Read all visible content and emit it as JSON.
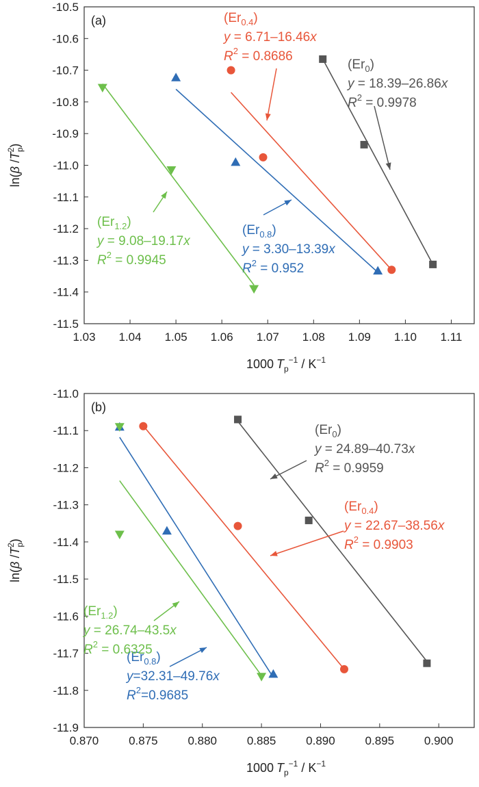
{
  "chart_data": [
    {
      "type": "scatter",
      "panel_label": "(a)",
      "xlabel": "1000T_p^-1 / K^-1",
      "ylabel": "ln(β/T_p^2)",
      "xlim": [
        1.03,
        1.115
      ],
      "ylim": [
        -11.5,
        -10.5
      ],
      "xticks": [
        "1.03",
        "1.04",
        "1.05",
        "1.06",
        "1.07",
        "1.08",
        "1.09",
        "1.10",
        "1.11"
      ],
      "yticks": [
        "-10.5",
        "-10.6",
        "-10.7",
        "-10.8",
        "-10.9",
        "-11.0",
        "-11.1",
        "-11.2",
        "-11.3",
        "-11.4",
        "-11.5"
      ],
      "series": [
        {
          "name": "Er0",
          "label_base": "(Er",
          "label_sub": "0",
          "color": "#555555",
          "marker": "square",
          "points": [
            [
              1.082,
              -10.665
            ],
            [
              1.091,
              -10.935
            ],
            [
              1.106,
              -11.313
            ]
          ],
          "fit": [
            [
              1.082,
              -10.665
            ],
            [
              1.106,
              -11.313
            ]
          ],
          "equation": "y = 18.39–26.86x",
          "r2": "R² = 0.9978"
        },
        {
          "name": "Er0.4",
          "label_base": "(Er",
          "label_sub": "0.4",
          "color": "#e8563a",
          "marker": "circle",
          "points": [
            [
              1.062,
              -10.7
            ],
            [
              1.069,
              -10.975
            ],
            [
              1.097,
              -11.33
            ]
          ],
          "fit": [
            [
              1.062,
              -10.77
            ],
            [
              1.097,
              -11.33
            ]
          ],
          "equation": "y = 6.71–16.46x",
          "r2": "R² = 0.8686"
        },
        {
          "name": "Er0.8",
          "label_base": "(Er",
          "label_sub": "0.8",
          "color": "#2f6db5",
          "marker": "triangle-up",
          "points": [
            [
              1.05,
              -10.723
            ],
            [
              1.063,
              -10.99
            ],
            [
              1.094,
              -11.333
            ]
          ],
          "fit": [
            [
              1.05,
              -10.76
            ],
            [
              1.094,
              -11.338
            ]
          ],
          "equation": "y = 3.30–13.39x",
          "r2": "R² = 0.952"
        },
        {
          "name": "Er1.2",
          "label_base": "(Er",
          "label_sub": "1.2",
          "color": "#6dbf4b",
          "marker": "triangle-down",
          "points": [
            [
              1.034,
              -10.755
            ],
            [
              1.049,
              -11.015
            ],
            [
              1.067,
              -11.39
            ]
          ],
          "fit": [
            [
              1.034,
              -10.743
            ],
            [
              1.067,
              -11.378
            ]
          ],
          "equation": "y = 9.08–19.17x",
          "r2": "R² = 0.9945"
        }
      ]
    },
    {
      "type": "scatter",
      "panel_label": "(b)",
      "xlabel": "1000T_p^-1 / K^-1",
      "ylabel": "ln(β/T_p^2)",
      "xlim": [
        0.87,
        0.903
      ],
      "ylim": [
        -11.9,
        -11.0
      ],
      "xticks": [
        "0.870",
        "0.875",
        "0.880",
        "0.885",
        "0.890",
        "0.895",
        "0.900"
      ],
      "yticks": [
        "-11.0",
        "-11.1",
        "-11.2",
        "-11.3",
        "-11.4",
        "-11.5",
        "-11.6",
        "-11.7",
        "-11.8",
        "-11.9"
      ],
      "series": [
        {
          "name": "Er0",
          "label_base": "(Er",
          "label_sub": "0",
          "color": "#555555",
          "marker": "square",
          "points": [
            [
              0.883,
              -11.07
            ],
            [
              0.889,
              -11.342
            ],
            [
              0.899,
              -11.727
            ]
          ],
          "fit": [
            [
              0.883,
              -11.075
            ],
            [
              0.899,
              -11.722
            ]
          ],
          "equation": "y = 24.89–40.73x",
          "r2": "R² = 0.9959"
        },
        {
          "name": "Er0.4",
          "label_base": "(Er",
          "label_sub": "0.4",
          "color": "#e8563a",
          "marker": "circle",
          "points": [
            [
              0.875,
              -11.088
            ],
            [
              0.883,
              -11.357
            ],
            [
              0.892,
              -11.743
            ]
          ],
          "fit": [
            [
              0.875,
              -11.087
            ],
            [
              0.892,
              -11.743
            ]
          ],
          "equation": "y = 22.67–38.56x",
          "r2": "R² = 0.9903"
        },
        {
          "name": "Er0.8",
          "label_base": "(Er",
          "label_sub": "0.8",
          "color": "#2f6db5",
          "marker": "triangle-up",
          "points": [
            [
              0.873,
              -11.09
            ],
            [
              0.877,
              -11.37
            ],
            [
              0.886,
              -11.756
            ]
          ],
          "fit": [
            [
              0.873,
              -11.118
            ],
            [
              0.886,
              -11.765
            ]
          ],
          "equation": "y=32.31–49.76x",
          "r2": "R²=0.9685"
        },
        {
          "name": "Er1.2",
          "label_base": "(Er",
          "label_sub": "1.2",
          "color": "#6dbf4b",
          "marker": "triangle-down",
          "points": [
            [
              0.873,
              -11.09
            ],
            [
              0.873,
              -11.38
            ],
            [
              0.885,
              -11.763
            ]
          ],
          "fit": [
            [
              0.873,
              -11.235
            ],
            [
              0.885,
              -11.76
            ]
          ],
          "equation": "y = 26.74–43.5x",
          "r2": "R² = 0.6325"
        }
      ]
    }
  ]
}
